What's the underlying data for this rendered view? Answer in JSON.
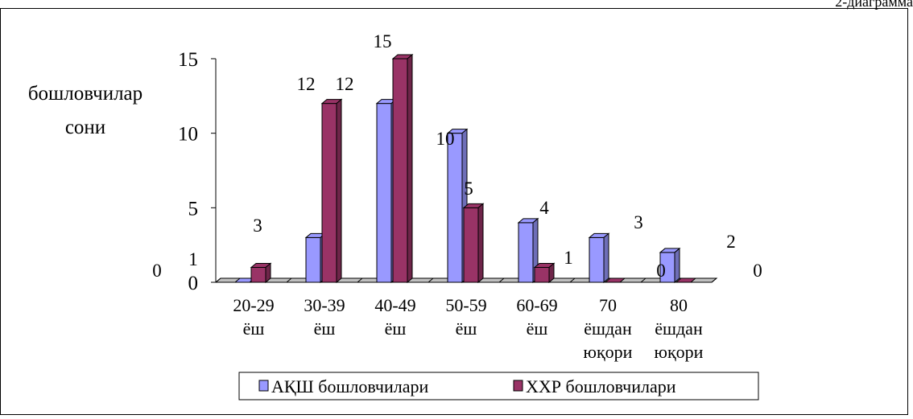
{
  "corner_label": "2-диаграмма",
  "chart_data": {
    "type": "bar",
    "ylabel_line1": "бошловчилар",
    "ylabel_line2": "сони",
    "ylim": [
      0,
      15
    ],
    "yticks": [
      0,
      5,
      10,
      15
    ],
    "categories": [
      [
        "20-29",
        "ёш"
      ],
      [
        "30-39",
        "ёш"
      ],
      [
        "40-49",
        "ёш"
      ],
      [
        "50-59",
        "ёш"
      ],
      [
        "60-69",
        "ёш"
      ],
      [
        "70",
        "ёшдан",
        "юқори"
      ],
      [
        "80",
        "ёшдан",
        "юқори"
      ]
    ],
    "series": [
      {
        "name": "АҚШ бошловчилари",
        "values": [
          0,
          3,
          12,
          10,
          4,
          3,
          2
        ],
        "color": "#9999ff"
      },
      {
        "name": "ХХР бошловчилари",
        "values": [
          1,
          12,
          15,
          5,
          1,
          0,
          0
        ],
        "color": "#993366"
      }
    ],
    "grid": false,
    "legend_position": "bottom"
  }
}
